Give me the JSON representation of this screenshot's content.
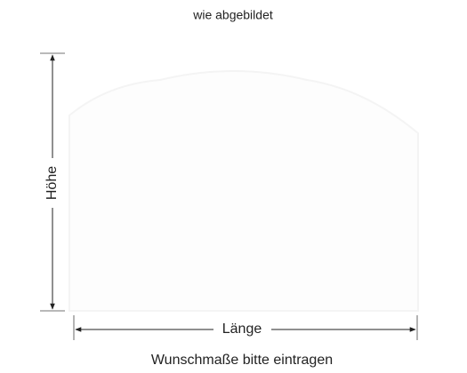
{
  "header": {
    "title": "wie abgebildet"
  },
  "dimensions": {
    "height": "Höhe",
    "length": "Länge"
  },
  "footer": "Wunschmaße bitte eintragen"
}
